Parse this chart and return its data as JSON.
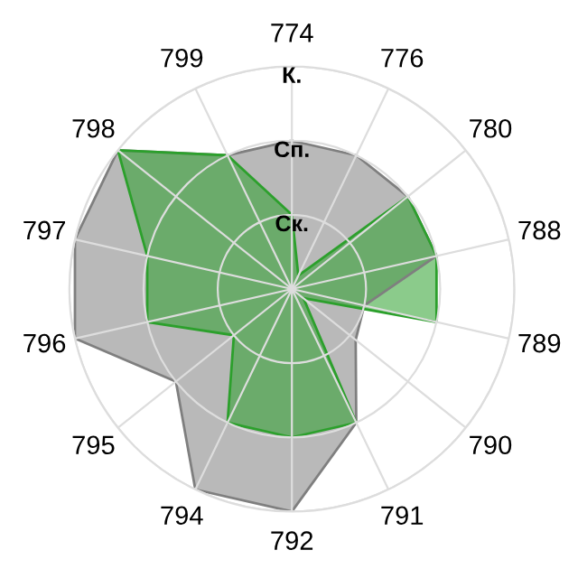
{
  "chart_data": {
    "type": "radar",
    "categories": [
      "774",
      "776",
      "780",
      "788",
      "789",
      "790",
      "791",
      "792",
      "794",
      "795",
      "796",
      "797",
      "798",
      "799"
    ],
    "series": [
      {
        "color": "#7f7f7f",
        "values": [
          2,
          2,
          2,
          2,
          1,
          1.1,
          2,
          3,
          3,
          2,
          3,
          3,
          3,
          2
        ]
      },
      {
        "color": "#2ca02c",
        "values": [
          1,
          0.2,
          2,
          2,
          2,
          0.2,
          2,
          2,
          2,
          1,
          2,
          2,
          3,
          2
        ]
      }
    ],
    "ylim": [
      0,
      3
    ],
    "yticks": [
      {
        "value": 1,
        "label": "Ск."
      },
      {
        "value": 2,
        "label": "Сп."
      },
      {
        "value": 3,
        "label": "К."
      }
    ],
    "grid": true
  }
}
